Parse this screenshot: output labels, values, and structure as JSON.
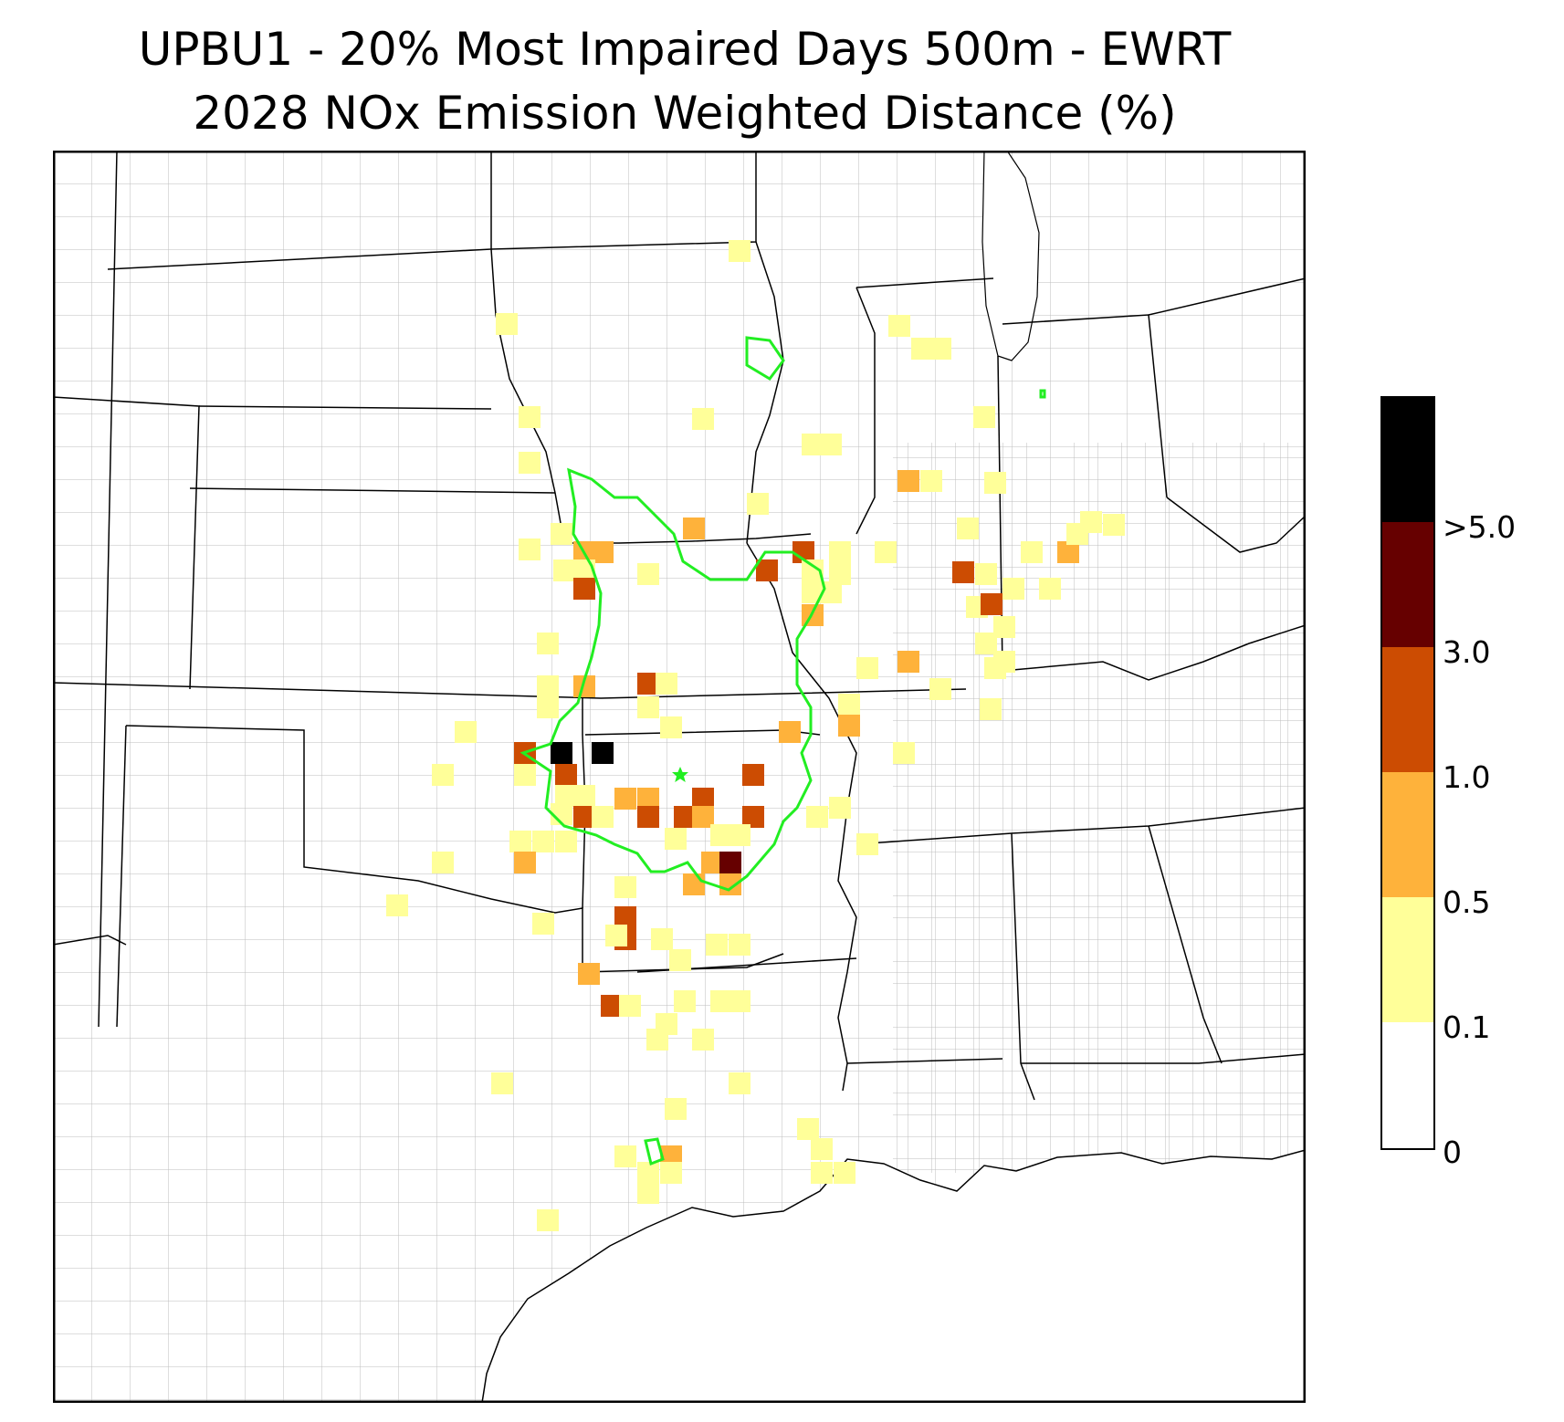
{
  "title": {
    "line1": "UPBU1 - 20% Most Impaired Days 500m - EWRT",
    "line2": "2028 NOx Emission Weighted Distance (%)"
  },
  "colors": {
    "bin_0_0.1": "#ffffff",
    "bin_0.1_0.5": "#ffff99",
    "bin_0.5_1.0": "#feb23b",
    "bin_1.0_3.0": "#cc4c02",
    "bin_3.0_5.0": "#660000",
    "bin_gt5": "#000000",
    "aoi_outline": "#22ee22",
    "county_lines": "#a6a6a6",
    "state_lines": "#000000"
  },
  "colorbar": {
    "tick_labels": [
      "0",
      "0.1",
      "0.5",
      "1.0",
      "3.0",
      ">5.0"
    ],
    "bins": [
      {
        "range": "0 - 0.1",
        "color": "#ffffff"
      },
      {
        "range": "0.1 - 0.5",
        "color": "#ffff99"
      },
      {
        "range": "0.5 - 1.0",
        "color": "#feb23b"
      },
      {
        "range": "1.0 - 3.0",
        "color": "#cc4c02"
      },
      {
        "range": "3.0 - 5.0",
        "color": "#660000"
      },
      {
        "range": ">5.0",
        "color": "#000000"
      }
    ]
  },
  "map": {
    "receptor_marker": "green-star-icon",
    "extent_description": "Central United States from the Great Plains to the Ohio Valley and Gulf Coast"
  }
}
